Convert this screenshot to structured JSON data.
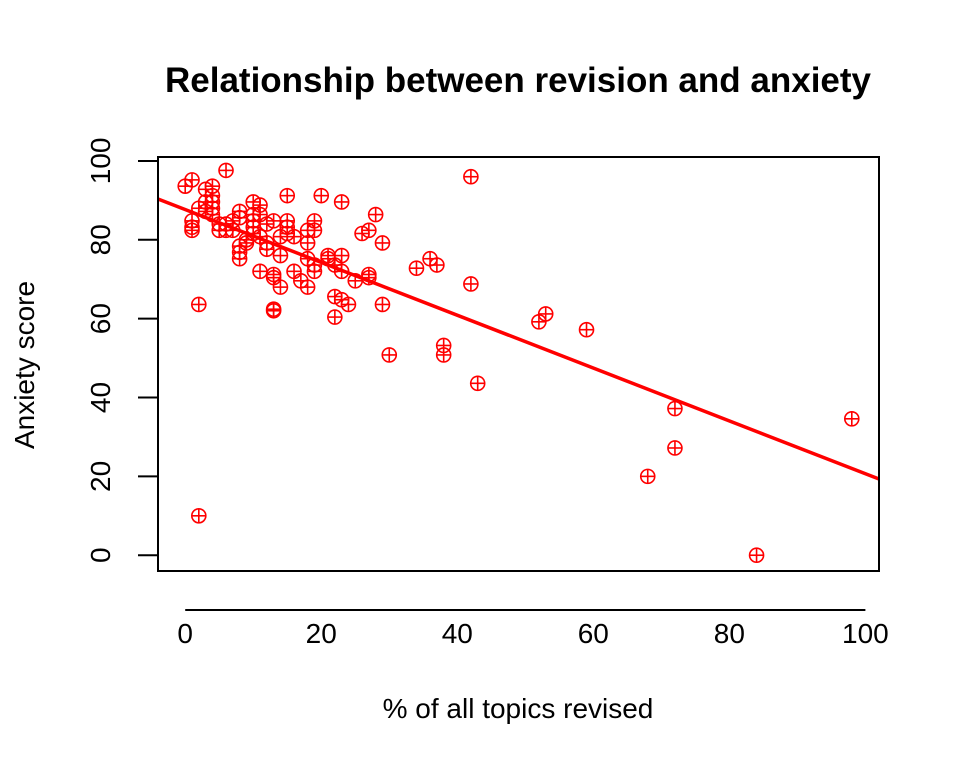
{
  "chart_data": {
    "type": "scatter",
    "title": "Relationship between revision and anxiety",
    "xlabel": "% of all topics revised",
    "ylabel": "Anxiety score",
    "xlim": [
      -4,
      102
    ],
    "ylim": [
      -4,
      101
    ],
    "x_ticks": [
      "0",
      "20",
      "40",
      "60",
      "80",
      "100"
    ],
    "y_ticks": [
      "0",
      "20",
      "40",
      "60",
      "80",
      "100"
    ],
    "grid": false,
    "legend": "none",
    "marker": "circle-plus",
    "color": "#ff0000",
    "series": [
      {
        "points": [
          [
            0,
            93.6
          ],
          [
            1,
            95.2
          ],
          [
            1,
            84.8
          ],
          [
            1,
            83.2
          ],
          [
            1,
            82.4
          ],
          [
            2,
            88.0
          ],
          [
            2,
            63.6
          ],
          [
            2,
            10.0
          ],
          [
            3,
            92.8
          ],
          [
            3,
            89.6
          ],
          [
            3,
            87.2
          ],
          [
            4,
            93.6
          ],
          [
            4,
            91.2
          ],
          [
            4,
            89.6
          ],
          [
            4,
            88.0
          ],
          [
            4,
            86.4
          ],
          [
            5,
            82.4
          ],
          [
            5,
            84.0
          ],
          [
            6,
            97.6
          ],
          [
            6,
            84.0
          ],
          [
            6,
            82.4
          ],
          [
            7,
            82.4
          ],
          [
            7,
            84.8
          ],
          [
            8,
            87.2
          ],
          [
            8,
            85.6
          ],
          [
            8,
            78.4
          ],
          [
            8,
            76.8
          ],
          [
            8,
            75.2
          ],
          [
            9,
            80.0
          ],
          [
            9,
            79.2
          ],
          [
            10,
            89.6
          ],
          [
            10,
            86.4
          ],
          [
            10,
            84.8
          ],
          [
            10,
            83.2
          ],
          [
            10,
            81.6
          ],
          [
            11,
            88.8
          ],
          [
            11,
            86.4
          ],
          [
            11,
            80.8
          ],
          [
            11,
            72.0
          ],
          [
            12,
            84.0
          ],
          [
            12,
            79.2
          ],
          [
            12,
            77.6
          ],
          [
            13,
            84.8
          ],
          [
            13,
            71.2
          ],
          [
            13,
            70.4
          ],
          [
            13,
            62.4
          ],
          [
            13,
            62.0
          ],
          [
            14,
            80.8
          ],
          [
            14,
            76.0
          ],
          [
            14,
            68.0
          ],
          [
            15,
            91.2
          ],
          [
            15,
            84.8
          ],
          [
            15,
            83.2
          ],
          [
            15,
            81.6
          ],
          [
            16,
            80.8
          ],
          [
            16,
            72.0
          ],
          [
            17,
            69.6
          ],
          [
            18,
            82.4
          ],
          [
            18,
            79.2
          ],
          [
            18,
            75.2
          ],
          [
            18,
            68.0
          ],
          [
            19,
            84.8
          ],
          [
            19,
            82.4
          ],
          [
            19,
            73.6
          ],
          [
            19,
            72.0
          ],
          [
            20,
            91.2
          ],
          [
            21,
            76.0
          ],
          [
            21,
            75.2
          ],
          [
            22,
            73.6
          ],
          [
            22,
            65.6
          ],
          [
            22,
            60.4
          ],
          [
            23,
            89.6
          ],
          [
            23,
            76.0
          ],
          [
            23,
            72.0
          ],
          [
            23,
            64.8
          ],
          [
            24,
            63.6
          ],
          [
            25,
            69.6
          ],
          [
            26,
            81.6
          ],
          [
            27,
            82.4
          ],
          [
            27,
            71.2
          ],
          [
            27,
            70.4
          ],
          [
            28,
            86.4
          ],
          [
            29,
            79.2
          ],
          [
            29,
            63.6
          ],
          [
            30,
            50.8
          ],
          [
            34,
            72.8
          ],
          [
            36,
            75.2
          ],
          [
            37,
            73.6
          ],
          [
            38,
            53.2
          ],
          [
            38,
            50.8
          ],
          [
            42,
            96.0
          ],
          [
            42,
            68.8
          ],
          [
            43,
            43.6
          ],
          [
            52,
            59.2
          ],
          [
            53,
            61.2
          ],
          [
            59,
            57.2
          ],
          [
            68,
            20.0
          ],
          [
            72,
            37.2
          ],
          [
            72,
            27.2
          ],
          [
            84,
            0.0
          ],
          [
            98,
            34.6
          ]
        ]
      }
    ],
    "regression_line": {
      "intercept": 87.67,
      "slope": -0.67
    }
  }
}
